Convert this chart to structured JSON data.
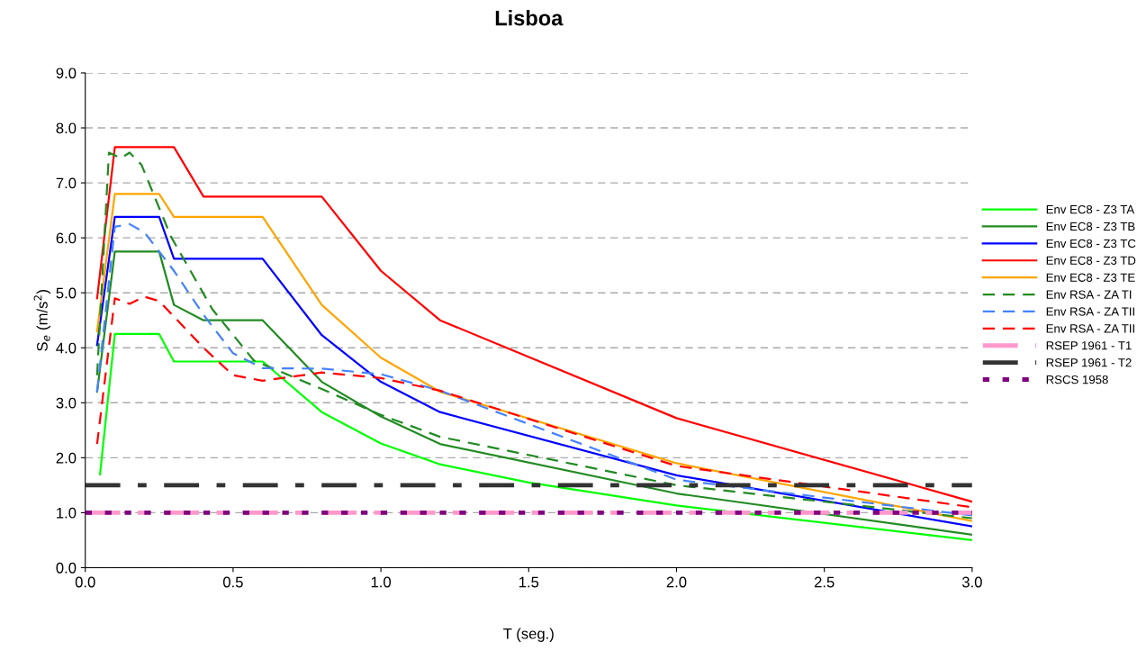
{
  "chart_data": {
    "type": "line",
    "title": "Lisboa",
    "xlabel": "T (seg.)",
    "ylabel": "S$_{e}$ (m/s$^{2}$)",
    "xlim": [
      0,
      3
    ],
    "xticks": [
      {
        "value": 0,
        "label": "0.0"
      },
      0.5,
      {
        "value": 1,
        "label": "1.0"
      },
      1.5,
      {
        "value": 2,
        "label": "2.0"
      },
      2.5,
      {
        "value": 3,
        "label": "3.0"
      }
    ],
    "ylim": [
      0,
      9
    ],
    "yticks": [
      {
        "value": 0,
        "label": "0.0"
      },
      {
        "value": 1,
        "label": "1.0"
      },
      {
        "value": 2,
        "label": "2.0"
      },
      {
        "value": 3,
        "label": "3.0"
      },
      {
        "value": 4,
        "label": "4.0"
      },
      {
        "value": 5,
        "label": "5.0"
      },
      {
        "value": 6,
        "label": "6.0"
      },
      {
        "value": 7,
        "label": "7.0"
      },
      {
        "value": 8,
        "label": "8.0"
      },
      {
        "value": 9,
        "label": "9.0"
      }
    ],
    "grid": "y",
    "legend": "right",
    "marker": "none",
    "series": [
      {
        "name": "Env EC8 - Z3 TA",
        "color": "#00ff00",
        "line_style": "solid",
        "x": [
          0.05,
          0.1,
          0.25,
          0.3,
          0.6,
          0.8,
          1.0,
          1.2,
          1.5,
          2.0,
          3.0
        ],
        "values": [
          1.7,
          4.25,
          4.25,
          3.75,
          3.75,
          2.83,
          2.26,
          1.88,
          1.55,
          1.13,
          0.5
        ]
      },
      {
        "name": "Env EC8 - Z3 TB",
        "color": "#228b22",
        "line_style": "solid",
        "x": [
          0.04,
          0.1,
          0.25,
          0.3,
          0.4,
          0.6,
          0.8,
          1.0,
          1.2,
          2.0,
          3.0
        ],
        "values": [
          3.2,
          5.75,
          5.75,
          4.78,
          4.5,
          4.5,
          3.38,
          2.75,
          2.25,
          1.35,
          0.6
        ]
      },
      {
        "name": "Env EC8 - Z3 TC",
        "color": "#0000ff",
        "line_style": "solid",
        "x": [
          0.04,
          0.1,
          0.25,
          0.3,
          0.6,
          0.8,
          1.0,
          1.2,
          2.0,
          3.0
        ],
        "values": [
          4.05,
          6.38,
          6.38,
          5.62,
          5.62,
          4.23,
          3.38,
          2.83,
          1.68,
          0.75
        ]
      },
      {
        "name": "Env EC8 - Z3 TD",
        "color": "#ff0000",
        "line_style": "solid",
        "x": [
          0.04,
          0.1,
          0.3,
          0.4,
          0.8,
          1.0,
          1.2,
          2.0,
          3.0
        ],
        "values": [
          4.9,
          7.65,
          7.65,
          6.75,
          6.75,
          5.4,
          4.5,
          2.72,
          1.2
        ]
      },
      {
        "name": "Env EC8 - Z3 TE",
        "color": "#ffa500",
        "line_style": "solid",
        "x": [
          0.04,
          0.1,
          0.25,
          0.3,
          0.6,
          0.8,
          1.0,
          1.2,
          2.0,
          3.0
        ],
        "values": [
          4.3,
          6.8,
          6.8,
          6.38,
          6.38,
          4.78,
          3.82,
          3.2,
          1.9,
          0.85
        ]
      },
      {
        "name": "Env RSA - ZA TI",
        "color": "#228b22",
        "line_style": "dashed",
        "x": [
          0.04,
          0.08,
          0.12,
          0.15,
          0.19,
          0.29,
          0.43,
          0.57,
          0.8,
          1.0,
          1.2,
          2.0,
          3.0
        ],
        "values": [
          3.5,
          7.55,
          7.45,
          7.55,
          7.33,
          6.02,
          4.7,
          3.77,
          3.25,
          2.78,
          2.38,
          1.5,
          0.9
        ]
      },
      {
        "name": "Env RSA - ZA TII",
        "color": "#4682ff",
        "line_style": "dashed",
        "x": [
          0.04,
          0.1,
          0.15,
          0.2,
          0.3,
          0.4,
          0.5,
          0.6,
          0.8,
          1.0,
          1.2,
          2.0,
          3.0
        ],
        "values": [
          3.2,
          6.2,
          6.25,
          6.1,
          5.4,
          4.6,
          3.9,
          3.63,
          3.62,
          3.52,
          3.22,
          1.6,
          0.95
        ]
      },
      {
        "name": "Env RSA - ZA TII",
        "color": "#ff0000",
        "line_style": "dashed",
        "x": [
          0.04,
          0.1,
          0.15,
          0.2,
          0.25,
          0.4,
          0.5,
          0.6,
          0.8,
          1.0,
          1.2,
          2.0,
          3.0
        ],
        "values": [
          2.25,
          4.9,
          4.8,
          4.93,
          4.85,
          4.0,
          3.5,
          3.4,
          3.55,
          3.45,
          3.22,
          1.85,
          1.1
        ]
      },
      {
        "name": "RSEP 1961 - T1",
        "color": "#ff99cc",
        "line_style": "dashdot",
        "x": [
          0,
          3
        ],
        "values": [
          1.0,
          1.0
        ]
      },
      {
        "name": "RSEP 1961 - T2",
        "color": "#333333",
        "line_style": "dashdot",
        "x": [
          0,
          3
        ],
        "values": [
          1.5,
          1.5
        ]
      },
      {
        "name": "RSCS 1958",
        "color": "#800080",
        "line_style": "dotted",
        "x": [
          0,
          3
        ],
        "values": [
          1.0,
          1.0
        ]
      }
    ]
  }
}
